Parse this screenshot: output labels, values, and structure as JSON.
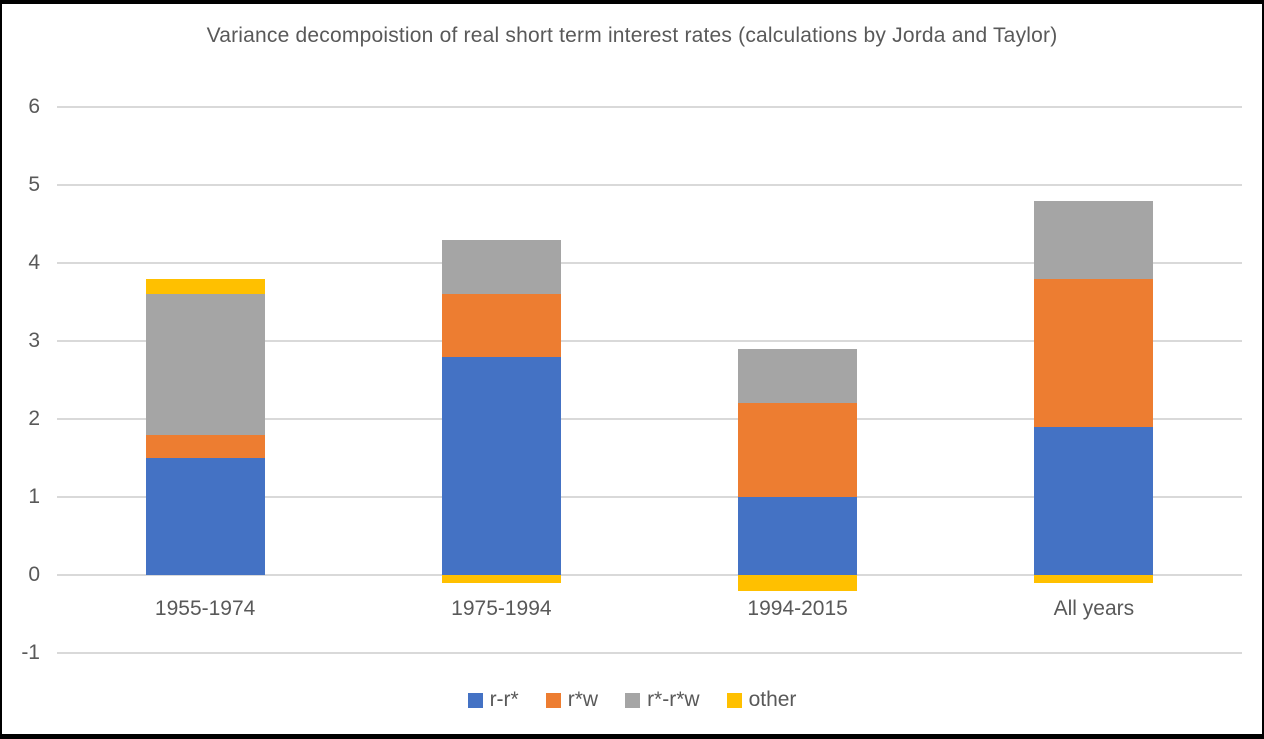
{
  "chart_data": {
    "type": "bar",
    "stacked": true,
    "title": "Variance decompoistion of real short term interest rates (calculations by Jorda and Taylor)",
    "categories": [
      "1955-1974",
      "1975-1994",
      "1994-2015",
      "All years"
    ],
    "series": [
      {
        "name": "r-r*",
        "color": "#4472C4",
        "values": [
          1.5,
          2.8,
          1.0,
          1.9
        ]
      },
      {
        "name": "r*w",
        "color": "#ED7D31",
        "values": [
          0.3,
          0.8,
          1.2,
          1.9
        ]
      },
      {
        "name": "r*-r*w",
        "color": "#A5A5A5",
        "values": [
          1.8,
          0.7,
          0.7,
          1.0
        ]
      },
      {
        "name": "other",
        "color": "#FFC000",
        "values": [
          0.2,
          -0.1,
          -0.2,
          -0.1
        ]
      }
    ],
    "xlabel": "",
    "ylabel": "",
    "y_axis": {
      "min": -1,
      "max": 6,
      "step": 1,
      "tick_labels": [
        "6",
        "5",
        "4",
        "3",
        "2",
        "1",
        "0",
        "-1"
      ]
    },
    "grid": true,
    "legend_position": "bottom",
    "colors": {
      "gridline": "#D9D9D9",
      "axis_text": "#595959",
      "title_text": "#595959",
      "background": "#FFFFFF",
      "frame_border": "#000000"
    }
  }
}
